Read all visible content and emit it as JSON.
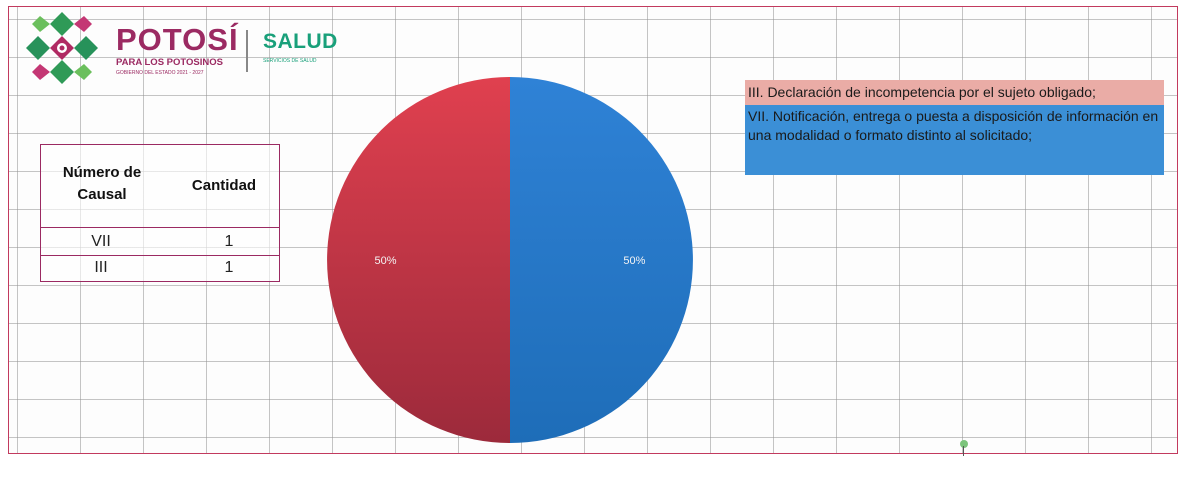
{
  "logo": {
    "brand": "POTOSÍ",
    "tagline": "PARA LOS POTOSINOS",
    "government": "GOBIERNO DEL ESTADO 2021 - 2027",
    "dept": "SALUD",
    "dept_sub": "SERVICIOS DE SALUD"
  },
  "table": {
    "headers": [
      "Número de Causal",
      "Cantidad"
    ],
    "rows": [
      {
        "causal": "VII",
        "cantidad": "1"
      },
      {
        "causal": "III",
        "cantidad": "1"
      }
    ]
  },
  "legend": {
    "item1": "III. Declaración de incompetencia por el sujeto obligado;",
    "item2": "VII. Notificación, entrega o puesta a disposición de información en una modalidad o formato distinto al solicitado;"
  },
  "colors": {
    "slice_iii": "#d0394d",
    "slice_vii": "#2f82d6",
    "legend_iii": "#eaaca6",
    "legend_vii": "#3b8fd6"
  },
  "chart_data": {
    "type": "pie",
    "categories": [
      "VII",
      "III"
    ],
    "values": [
      1,
      1
    ],
    "labels": [
      "50%",
      "50%"
    ],
    "colors": [
      "#2f82d6",
      "#d0394d"
    ]
  }
}
